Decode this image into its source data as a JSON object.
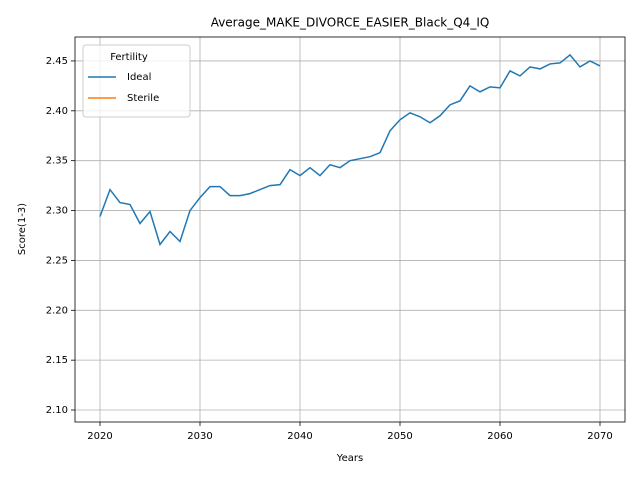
{
  "chart_data": {
    "type": "line",
    "title": "Average_MAKE_DIVORCE_EASIER_Black_Q4_IQ",
    "xlabel": "Years",
    "ylabel": "Score(1-3)",
    "x": [
      2020,
      2021,
      2022,
      2023,
      2024,
      2025,
      2026,
      2027,
      2028,
      2029,
      2030,
      2031,
      2032,
      2033,
      2034,
      2035,
      2036,
      2037,
      2038,
      2039,
      2040,
      2041,
      2042,
      2043,
      2044,
      2045,
      2046,
      2047,
      2048,
      2049,
      2050,
      2051,
      2052,
      2053,
      2054,
      2055,
      2056,
      2057,
      2058,
      2059,
      2060,
      2061,
      2062,
      2063,
      2064,
      2065,
      2066,
      2067,
      2068,
      2069,
      2070
    ],
    "series": [
      {
        "name": "Ideal",
        "color": "#1f77b4",
        "values": [
          2.294,
          2.321,
          2.308,
          2.306,
          2.287,
          2.299,
          2.266,
          2.279,
          2.269,
          2.3,
          2.313,
          2.324,
          2.324,
          2.315,
          2.315,
          2.317,
          2.321,
          2.325,
          2.326,
          2.341,
          2.335,
          2.343,
          2.335,
          2.346,
          2.343,
          2.35,
          2.352,
          2.354,
          2.358,
          2.38,
          2.391,
          2.398,
          2.394,
          2.388,
          2.395,
          2.406,
          2.41,
          2.425,
          2.419,
          2.424,
          2.423,
          2.44,
          2.435,
          2.444,
          2.442,
          2.447,
          2.448,
          2.456,
          2.444,
          2.45,
          2.445
        ]
      },
      {
        "name": "Sterile",
        "color": "#ff7f0e",
        "values": [
          null,
          null,
          null,
          null,
          null,
          null,
          null,
          null,
          null,
          null,
          null,
          null,
          null,
          null,
          null,
          null,
          null,
          null,
          null,
          null,
          null,
          null,
          null,
          null,
          null,
          null,
          null,
          null,
          null,
          null,
          null,
          null,
          null,
          null,
          null,
          null,
          null,
          null,
          null,
          null,
          null,
          null,
          null,
          null,
          null,
          null,
          null,
          null,
          null,
          null,
          null
        ]
      }
    ],
    "legend_title": "Fertility",
    "legend": "upper left",
    "xlim": [
      2017.5,
      2072.5
    ],
    "xticks": [
      2020,
      2030,
      2040,
      2050,
      2060,
      2070
    ],
    "ylim": [
      2.088,
      2.474
    ],
    "yticks": [
      {
        "value": 2.1,
        "label": "2.10"
      },
      2.15,
      {
        "value": 2.2,
        "label": "2.20"
      },
      2.25,
      {
        "value": 2.3,
        "label": "2.30"
      },
      2.35,
      {
        "value": 2.4,
        "label": "2.40"
      },
      2.45
    ],
    "grid": true
  }
}
